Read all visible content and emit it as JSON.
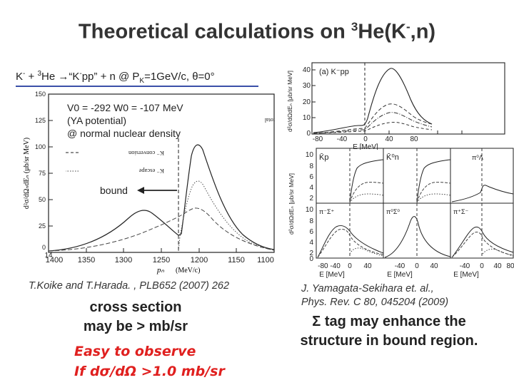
{
  "slide": {
    "title_main": "Theoretical calculations on ",
    "title_sup": "3",
    "title_end": "He(K",
    "title_sup2": "-",
    "title_close": ",n)",
    "subtitle_k": "K",
    "subtitle_minus": "-",
    "subtitle_plus": " + ",
    "subtitle_he_sup": "3",
    "subtitle_he": "He ",
    "subtitle_arrow": "→",
    "subtitle_kpp": "“K",
    "subtitle_kpp_minus": "-",
    "subtitle_kpp_end": "pp” + n @ P",
    "subtitle_sub_k": "K",
    "subtitle_rest": "=1GeV/c, θ=0°",
    "citation_left": "T.Koike and T.Harada. , PLB652 (2007) 262",
    "cross_line1": "cross section",
    "cross_line2": "may be > mb/sr",
    "easy_line1": "Easy to  observe",
    "easy_line2": "If dσ/dΩ  >1.0 mb/sr",
    "citation_right1": "J. Yamagata-Sekihara et. al.,",
    "citation_right2": "Phys. Rev. C 80, 045204 (2009)",
    "sigma_line1": "Σ tag may enhance the",
    "sigma_line2": "structure in bound region."
  },
  "left_plot": {
    "params_line1": "V0 = -292 W0 = -107 MeV",
    "params_line2": "(YA potential)",
    "params_line3": "@ normal nuclear density",
    "bound_label": "bound",
    "ylabel": "d²σ/dΩₙdEₙ  (μb/sr MeV)",
    "xlabel_var": "pₙ",
    "xlabel_unit": "(MeV/c)",
    "yticks": [
      "150",
      "125",
      "100",
      "75",
      "50",
      "25",
      "0"
    ],
    "xticks": [
      "1400",
      "1350",
      "1300",
      "1250",
      "1200",
      "1150",
      "1100"
    ],
    "origin_label": "14",
    "legend_conversion": "K⁻ conversion",
    "legend_escape": "K⁻ escape",
    "legend_total": "total"
  },
  "right_top": {
    "panel_label": "(a)  K⁻pp",
    "ylabel": "d²σ/dΩdEₙ [μb/sr MeV]",
    "xlabel": "E [MeV]",
    "yticks": [
      "40",
      "30",
      "20",
      "10",
      "0"
    ],
    "xticks": [
      "-80",
      "-40",
      "0",
      "40",
      "80"
    ]
  },
  "right_grid": {
    "ylabel": "d²σ/dΩdEₙ [μb/sr MeV]",
    "xlabel": "E [MeV]",
    "yticks_top": [
      "10",
      "8",
      "6",
      "4",
      "2"
    ],
    "yticks_bottom": [
      "10",
      "8",
      "6",
      "4",
      "2",
      "0"
    ],
    "xticks": [
      "-80 -40",
      "0",
      "40",
      "-40",
      "0",
      "40",
      "-40",
      "0",
      "40",
      "80"
    ],
    "labels": [
      "K̄p",
      "K̄⁰n",
      "π⁰Λ",
      "π⁻Σ⁺",
      "π⁰Σ⁰",
      "π⁺Σ⁻"
    ]
  }
}
